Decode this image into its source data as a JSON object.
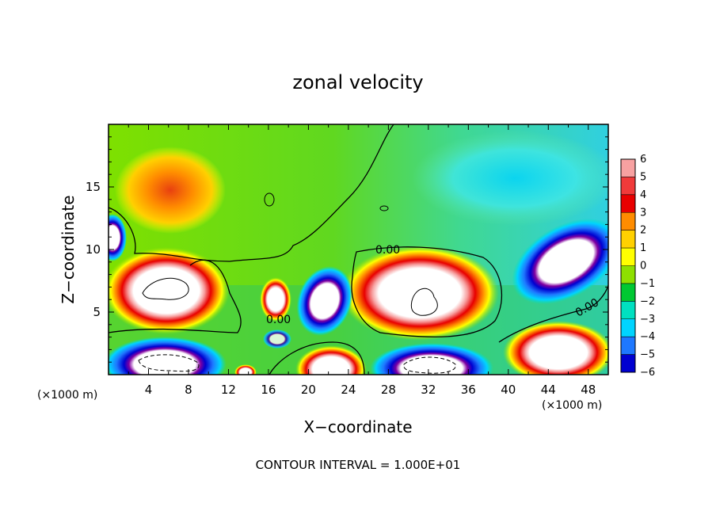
{
  "chart_data": {
    "type": "heatmap",
    "title": "zonal velocity",
    "xlabel": "X−coordinate",
    "ylabel": "Z−coordinate",
    "x_unit_left": "(×1000 m)",
    "x_unit_right": "(×1000 m)",
    "xlim": [
      0,
      50
    ],
    "ylim": [
      0,
      20
    ],
    "xticks": [
      4,
      8,
      12,
      16,
      20,
      24,
      28,
      32,
      36,
      40,
      44,
      48
    ],
    "yticks": [
      5,
      10,
      15
    ],
    "colorbar": {
      "levels": [
        "6",
        "5",
        "4",
        "3",
        "2",
        "1",
        "0",
        "−1",
        "−2",
        "−3",
        "−4",
        "−5",
        "−6"
      ],
      "colors": [
        "#f7a1a1",
        "#f03a3a",
        "#e80000",
        "#ff8c00",
        "#ffd000",
        "#ffff00",
        "#8ee000",
        "#00c832",
        "#00e0c0",
        "#00d4ff",
        "#1e78ff",
        "#0000d0",
        "#8000a0"
      ]
    },
    "contour_labels": [
      "0.00",
      "0.00",
      "0.00"
    ],
    "footer": "CONTOUR INTERVAL = 1.000E+01",
    "features": [
      {
        "x": 5.5,
        "z": 6.5,
        "sign": "positive",
        "peak": ">6"
      },
      {
        "x": 16.8,
        "z": 5.8,
        "sign": "positive",
        "peak": ">6"
      },
      {
        "x": 31,
        "z": 6.2,
        "sign": "positive",
        "peak": ">6"
      },
      {
        "x": 45.5,
        "z": 10,
        "sign": "negative",
        "peak": "<-6"
      },
      {
        "x": 21.2,
        "z": 6,
        "sign": "negative",
        "peak": "<-6"
      },
      {
        "x": 6.5,
        "z": 14.8,
        "sign": "positive",
        "peak": "4"
      },
      {
        "x": 4.5,
        "z": 0.8,
        "sign": "negative",
        "peak": "<-6"
      },
      {
        "x": 22.2,
        "z": 0.5,
        "sign": "positive",
        "peak": ">6"
      },
      {
        "x": 32,
        "z": 1,
        "sign": "negative",
        "peak": "<-6"
      },
      {
        "x": 45.5,
        "z": 2,
        "sign": "positive",
        "peak": ">6"
      }
    ]
  }
}
